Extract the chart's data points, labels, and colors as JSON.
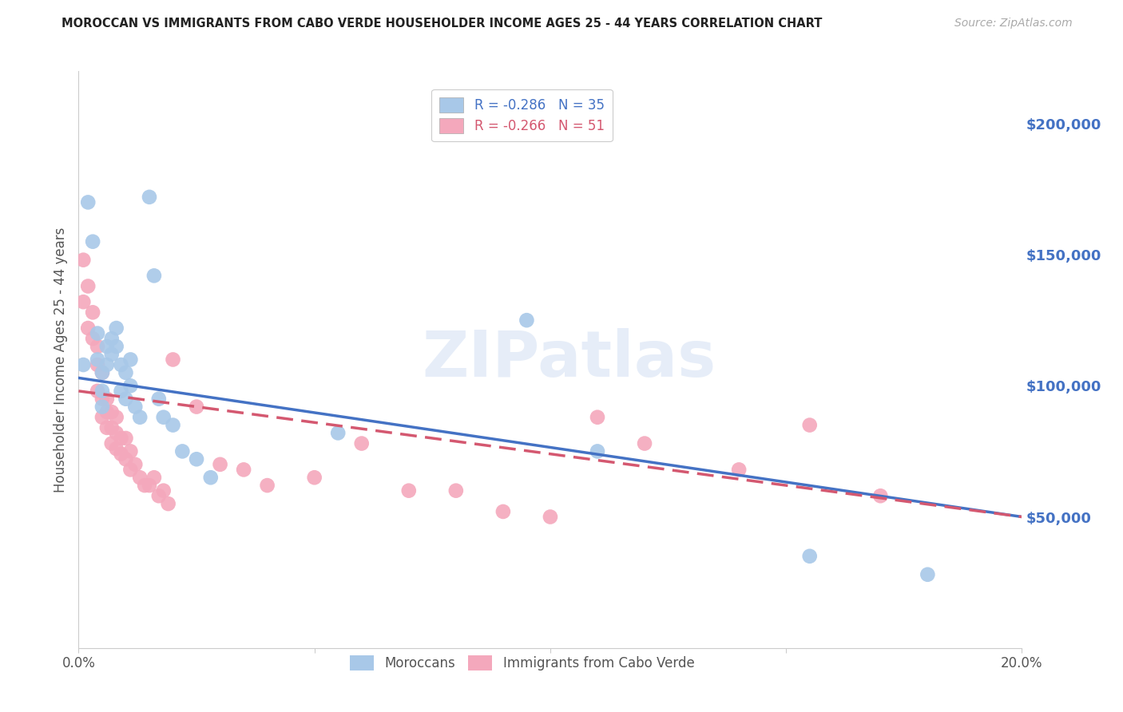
{
  "title": "MOROCCAN VS IMMIGRANTS FROM CABO VERDE HOUSEHOLDER INCOME AGES 25 - 44 YEARS CORRELATION CHART",
  "source": "Source: ZipAtlas.com",
  "ylabel": "Householder Income Ages 25 - 44 years",
  "xlim": [
    0,
    0.2
  ],
  "ylim": [
    0,
    220000
  ],
  "xticks": [
    0.0,
    0.05,
    0.1,
    0.15,
    0.2
  ],
  "yticks_right": [
    50000,
    100000,
    150000,
    200000
  ],
  "ytick_labels_right": [
    "$50,000",
    "$100,000",
    "$150,000",
    "$200,000"
  ],
  "moroccans_color": "#a8c8e8",
  "cabo_verde_color": "#f4a8bc",
  "moroccans_line_color": "#4472c4",
  "cabo_verde_line_color": "#d45870",
  "moroccans_R": -0.286,
  "moroccans_N": 35,
  "cabo_verde_R": -0.266,
  "cabo_verde_N": 51,
  "watermark": "ZIPatlas",
  "background_color": "#ffffff",
  "grid_color": "#cccccc",
  "legend_label_moroccans": "Moroccans",
  "legend_label_cabo_verde": "Immigrants from Cabo Verde",
  "moroccans_x": [
    0.001,
    0.002,
    0.003,
    0.004,
    0.004,
    0.005,
    0.005,
    0.005,
    0.006,
    0.006,
    0.007,
    0.007,
    0.008,
    0.008,
    0.009,
    0.009,
    0.01,
    0.01,
    0.011,
    0.011,
    0.012,
    0.013,
    0.015,
    0.016,
    0.017,
    0.018,
    0.02,
    0.022,
    0.025,
    0.028,
    0.055,
    0.095,
    0.11,
    0.155,
    0.18
  ],
  "moroccans_y": [
    108000,
    170000,
    155000,
    120000,
    110000,
    105000,
    98000,
    92000,
    115000,
    108000,
    118000,
    112000,
    122000,
    115000,
    108000,
    98000,
    105000,
    95000,
    110000,
    100000,
    92000,
    88000,
    172000,
    142000,
    95000,
    88000,
    85000,
    75000,
    72000,
    65000,
    82000,
    125000,
    75000,
    35000,
    28000
  ],
  "cabo_verde_x": [
    0.001,
    0.001,
    0.002,
    0.002,
    0.003,
    0.003,
    0.004,
    0.004,
    0.004,
    0.005,
    0.005,
    0.005,
    0.006,
    0.006,
    0.006,
    0.007,
    0.007,
    0.007,
    0.008,
    0.008,
    0.008,
    0.009,
    0.009,
    0.01,
    0.01,
    0.011,
    0.011,
    0.012,
    0.013,
    0.014,
    0.015,
    0.016,
    0.017,
    0.018,
    0.019,
    0.02,
    0.025,
    0.03,
    0.035,
    0.04,
    0.05,
    0.06,
    0.07,
    0.08,
    0.09,
    0.1,
    0.11,
    0.12,
    0.14,
    0.155,
    0.17
  ],
  "cabo_verde_y": [
    148000,
    132000,
    138000,
    122000,
    128000,
    118000,
    115000,
    108000,
    98000,
    105000,
    95000,
    88000,
    95000,
    90000,
    84000,
    90000,
    84000,
    78000,
    88000,
    82000,
    76000,
    80000,
    74000,
    80000,
    72000,
    75000,
    68000,
    70000,
    65000,
    62000,
    62000,
    65000,
    58000,
    60000,
    55000,
    110000,
    92000,
    70000,
    68000,
    62000,
    65000,
    78000,
    60000,
    60000,
    52000,
    50000,
    88000,
    78000,
    68000,
    85000,
    58000
  ]
}
